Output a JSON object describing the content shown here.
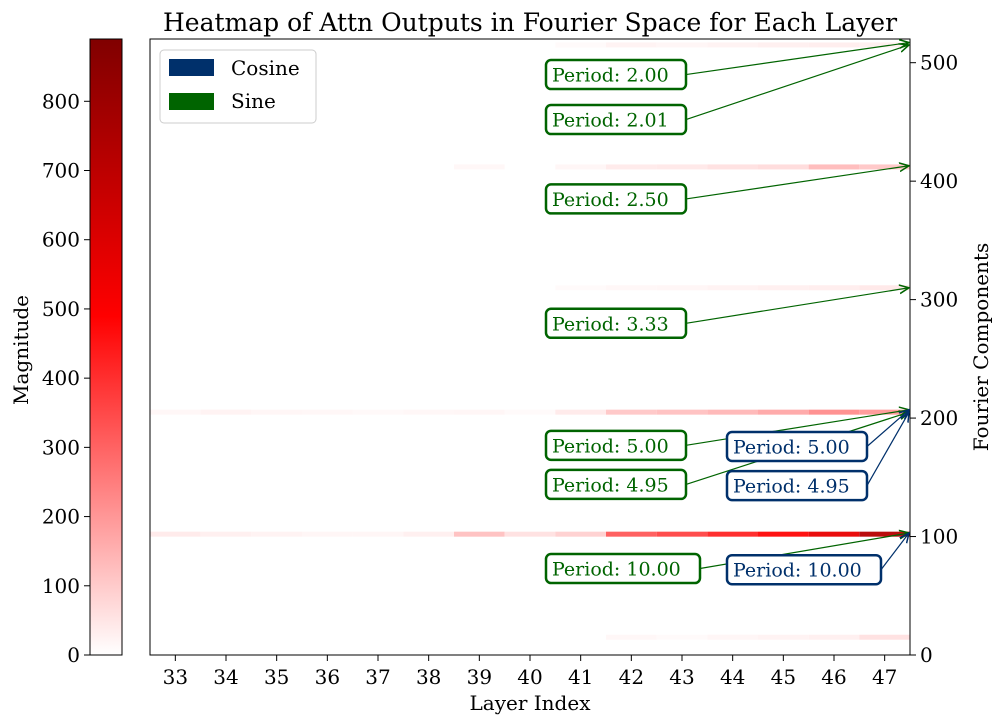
{
  "colors": {
    "cosine": "#00306b",
    "sine": "#006400",
    "heat_low": "#ffffff",
    "heat_mid": "#ff0000",
    "heat_high": "#800000"
  },
  "chart_data": {
    "type": "heatmap",
    "title": "Heatmap of Attn Outputs in Fourier Space for Each Layer",
    "xlabel": "Layer Index",
    "ylabel": "Fourier Components",
    "x_categories": [
      "33",
      "34",
      "35",
      "36",
      "37",
      "38",
      "39",
      "40",
      "41",
      "42",
      "43",
      "44",
      "45",
      "46",
      "47"
    ],
    "ylim": [
      0,
      520
    ],
    "y_ticks": [
      0,
      100,
      200,
      300,
      400,
      500
    ],
    "colorbar": {
      "label": "Magnitude",
      "range": [
        0,
        890
      ],
      "ticks": [
        0,
        100,
        200,
        300,
        400,
        500,
        600,
        700,
        800
      ]
    },
    "legend": {
      "placement": "top-left",
      "entries": [
        {
          "label": "Cosine",
          "color": "#00306b"
        },
        {
          "label": "Sine",
          "color": "#006400"
        }
      ]
    },
    "bands": [
      {
        "component": 102,
        "values": [
          40,
          30,
          25,
          20,
          20,
          30,
          120,
          60,
          90,
          320,
          360,
          420,
          480,
          560,
          720
        ]
      },
      {
        "component": 205,
        "values": [
          15,
          25,
          20,
          15,
          12,
          15,
          20,
          10,
          40,
          110,
          120,
          140,
          170,
          220,
          200
        ]
      },
      {
        "component": 412,
        "values": [
          0,
          0,
          0,
          0,
          0,
          0,
          15,
          0,
          20,
          40,
          45,
          60,
          70,
          130,
          110
        ]
      },
      {
        "component": 310,
        "values": [
          0,
          0,
          0,
          0,
          0,
          0,
          0,
          0,
          10,
          15,
          20,
          25,
          30,
          35,
          45
        ]
      },
      {
        "component": 515,
        "values": [
          0,
          0,
          0,
          0,
          0,
          0,
          0,
          0,
          10,
          25,
          20,
          25,
          30,
          35,
          30
        ]
      },
      {
        "component": 15,
        "values": [
          0,
          0,
          0,
          0,
          0,
          0,
          0,
          0,
          0,
          15,
          10,
          20,
          25,
          30,
          60
        ]
      }
    ],
    "annotations": [
      {
        "text": "Period: 2.00",
        "series": "Sine",
        "label_at": [
          41.8,
          490
        ],
        "target": [
          47.5,
          517
        ]
      },
      {
        "text": "Period: 2.01",
        "series": "Sine",
        "label_at": [
          41.8,
          452
        ],
        "target": [
          47.5,
          515
        ]
      },
      {
        "text": "Period: 2.50",
        "series": "Sine",
        "label_at": [
          41.8,
          385
        ],
        "target": [
          47.5,
          413
        ]
      },
      {
        "text": "Period: 3.33",
        "series": "Sine",
        "label_at": [
          41.8,
          280
        ],
        "target": [
          47.5,
          310
        ]
      },
      {
        "text": "Period: 5.00",
        "series": "Sine",
        "label_at": [
          41.8,
          177
        ],
        "target": [
          47.5,
          207
        ]
      },
      {
        "text": "Period: 4.95",
        "series": "Sine",
        "label_at": [
          41.8,
          144
        ],
        "target": [
          47.5,
          205
        ]
      },
      {
        "text": "Period: 10.00",
        "series": "Sine",
        "label_at": [
          41.8,
          73
        ],
        "target": [
          47.5,
          103
        ]
      },
      {
        "text": "Period: 5.00",
        "series": "Cosine",
        "label_at": [
          45.3,
          176
        ],
        "target": [
          47.5,
          207
        ]
      },
      {
        "text": "Period: 4.95",
        "series": "Cosine",
        "label_at": [
          45.3,
          143
        ],
        "target": [
          47.5,
          205
        ]
      },
      {
        "text": "Period: 10.00",
        "series": "Cosine",
        "label_at": [
          45.3,
          72
        ],
        "target": [
          47.5,
          103
        ]
      }
    ]
  }
}
